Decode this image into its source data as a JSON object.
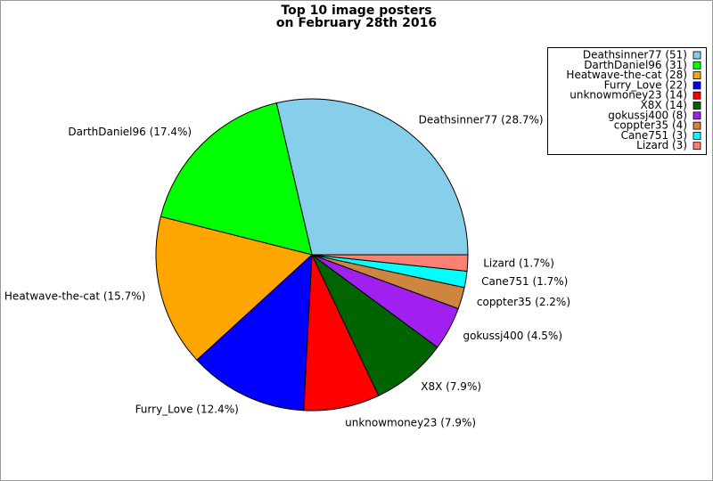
{
  "chart_data": {
    "type": "pie",
    "title": [
      "Top 10 image posters",
      "on February 28th 2016"
    ],
    "labels": [
      "Deathsinner77 (28.7%)",
      "DarthDaniel96 (17.4%)",
      "Heatwave-the-cat (15.7%)",
      "Furry_Love (12.4%)",
      "unknowmoney23 (7.9%)",
      "X8X (7.9%)",
      "gokussj400 (4.5%)",
      "coppter35 (2.2%)",
      "Cane751 (1.7%)",
      "Lizard (1.7%)"
    ],
    "legend": [
      "Deathsinner77 (51)",
      "DarthDaniel96 (31)",
      "Heatwave-the-cat (28)",
      "Furry_Love (22)",
      "unknowmoney23 (14)",
      "X8X (14)",
      "gokussj400 (8)",
      "coppter35 (4)",
      "Cane751 (3)",
      "Lizard (3)"
    ],
    "values": [
      51,
      31,
      28,
      22,
      14,
      14,
      8,
      4,
      3,
      3
    ],
    "colors": [
      "#87ceeb",
      "#00ff00",
      "#ffa500",
      "#0000ff",
      "#ff0000",
      "#006400",
      "#a020f0",
      "#cd853f",
      "#00ffff",
      "#fa8072"
    ],
    "legend_position": "upper right"
  }
}
